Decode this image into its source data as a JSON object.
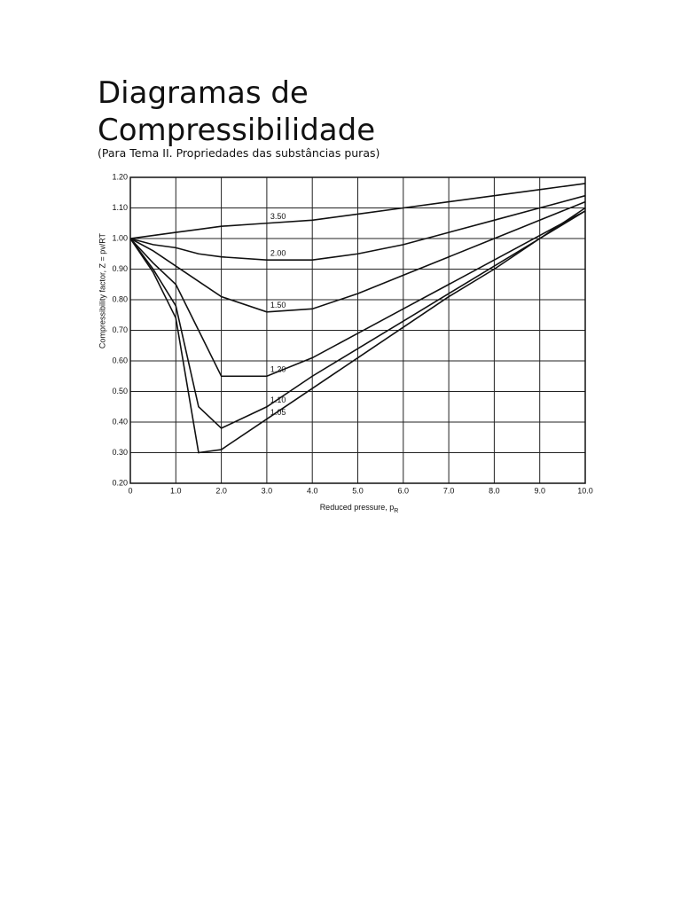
{
  "header": {
    "title_lines": [
      "Diagramas de",
      "Compressibilidade"
    ],
    "subtitle": "(Para Tema II. Propriedades das substâncias puras)"
  },
  "chart_data": {
    "type": "line",
    "x_label": {
      "text": "Reduced pressure, p",
      "subscript": "R"
    },
    "y_label": "Compressibility factor, Z = pv/RT",
    "x": [
      0,
      0.5,
      1,
      1.5,
      2,
      3,
      4,
      5,
      6,
      7,
      8,
      9,
      10
    ],
    "series": [
      {
        "name": "1.05",
        "color": "#111111",
        "values": [
          1.0,
          0.89,
          0.74,
          0.3,
          0.31,
          0.41,
          0.51,
          0.61,
          0.71,
          0.81,
          0.9,
          1.0,
          1.1
        ]
      },
      {
        "name": "1.10",
        "color": "#111111",
        "values": [
          1.0,
          0.9,
          0.78,
          0.45,
          0.38,
          0.45,
          0.55,
          0.64,
          0.73,
          0.82,
          0.91,
          1.0,
          1.09
        ]
      },
      {
        "name": "1.20",
        "color": "#111111",
        "values": [
          1.0,
          0.92,
          0.85,
          0.7,
          0.55,
          0.55,
          0.61,
          0.69,
          0.77,
          0.85,
          0.93,
          1.01,
          1.09
        ]
      },
      {
        "name": "1.50",
        "color": "#111111",
        "values": [
          1.0,
          0.96,
          0.91,
          0.86,
          0.81,
          0.76,
          0.77,
          0.82,
          0.88,
          0.94,
          1.0,
          1.06,
          1.12
        ]
      },
      {
        "name": "2.00",
        "color": "#111111",
        "values": [
          1.0,
          0.98,
          0.97,
          0.95,
          0.94,
          0.93,
          0.93,
          0.95,
          0.98,
          1.02,
          1.06,
          1.1,
          1.14
        ]
      },
      {
        "name": "3.50",
        "color": "#111111",
        "values": [
          1.0,
          1.01,
          1.02,
          1.03,
          1.04,
          1.05,
          1.06,
          1.08,
          1.1,
          1.12,
          1.14,
          1.16,
          1.18
        ]
      }
    ],
    "xlim": [
      0,
      10
    ],
    "xticks": [
      0,
      {
        "value": 1,
        "label": "1.0"
      },
      {
        "value": 2,
        "label": "2.0"
      },
      {
        "value": 3,
        "label": "3.0"
      },
      {
        "value": 4,
        "label": "4.0"
      },
      {
        "value": 5,
        "label": "5.0"
      },
      {
        "value": 6,
        "label": "6.0"
      },
      {
        "value": 7,
        "label": "7.0"
      },
      {
        "value": 8,
        "label": "8.0"
      },
      {
        "value": 9,
        "label": "9.0"
      },
      {
        "value": 10,
        "label": "10.0"
      }
    ],
    "ylim": [
      0.2,
      1.2
    ],
    "yticks": [
      {
        "value": 0.2,
        "label": "0.20"
      },
      {
        "value": 0.3,
        "label": "0.30"
      },
      {
        "value": 0.4,
        "label": "0.40"
      },
      {
        "value": 0.5,
        "label": "0.50"
      },
      {
        "value": 0.6,
        "label": "0.60"
      },
      {
        "value": 0.7,
        "label": "0.70"
      },
      {
        "value": 0.8,
        "label": "0.80"
      },
      {
        "value": 0.9,
        "label": "0.90"
      },
      {
        "value": 1.0,
        "label": "1.00"
      },
      {
        "value": 1.1,
        "label": "1.10"
      },
      {
        "value": 1.2,
        "label": "1.20"
      }
    ],
    "grid": true
  }
}
